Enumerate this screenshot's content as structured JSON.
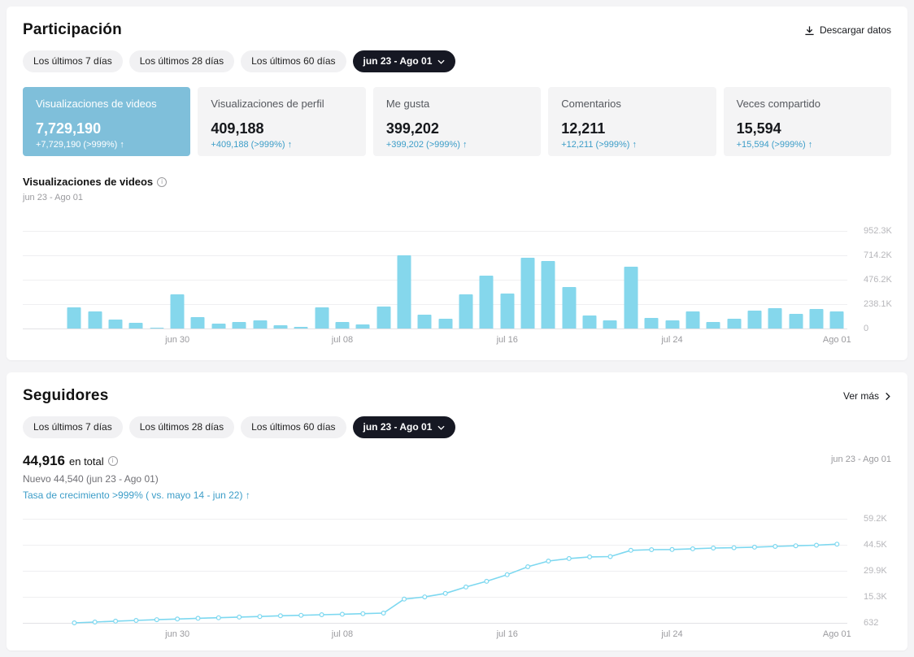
{
  "engagement": {
    "title": "Participación",
    "download_label": "Descargar datos",
    "filters": [
      "Los últimos 7 días",
      "Los últimos 28 días",
      "Los últimos 60 días"
    ],
    "date_range_label": "jun 23 - Ago 01",
    "metrics": [
      {
        "label": "Visualizaciones de videos",
        "value": "7,729,190",
        "delta": "+7,729,190 (>999%)",
        "selected": true
      },
      {
        "label": "Visualizaciones de perfil",
        "value": "409,188",
        "delta": "+409,188 (>999%)",
        "selected": false
      },
      {
        "label": "Me gusta",
        "value": "399,202",
        "delta": "+399,202 (>999%)",
        "selected": false
      },
      {
        "label": "Comentarios",
        "value": "12,211",
        "delta": "+12,211 (>999%)",
        "selected": false
      },
      {
        "label": "Veces compartido",
        "value": "15,594",
        "delta": "+15,594 (>999%)",
        "selected": false
      }
    ],
    "chart_title": "Visualizaciones de videos",
    "chart_subtitle": "jun 23 - Ago 01"
  },
  "followers": {
    "title": "Seguidores",
    "see_more_label": "Ver más",
    "filters": [
      "Los últimos 7 días",
      "Los últimos 28 días",
      "Los últimos 60 días"
    ],
    "date_range_label": "jun 23 - Ago 01",
    "total_value": "44,916",
    "total_suffix": "en total",
    "new_label": "Nuevo 44,540 (jun 23 - Ago 01)",
    "growth_label": "Tasa de crecimiento >999% ( vs. mayo 14 - jun 22)",
    "range_caption": "jun 23 - Ago 01"
  },
  "symbols": {
    "up_arrow": "↑"
  },
  "colors": {
    "accent_blue": "#3c9dc8",
    "selected_card": "#7fbfda",
    "bar_fill": "#85d7ec",
    "line_stroke": "#7dd8f0",
    "active_pill": "#161823"
  },
  "chart_data": [
    {
      "type": "bar",
      "title": "Visualizaciones de videos",
      "date_range": "jun 23 - Ago 01",
      "x": [
        "jun 23",
        "jun 24",
        "jun 25",
        "jun 26",
        "jun 27",
        "jun 28",
        "jun 29",
        "jun 30",
        "jul 01",
        "jul 02",
        "jul 03",
        "jul 04",
        "jul 05",
        "jul 06",
        "jul 07",
        "jul 08",
        "jul 09",
        "jul 10",
        "jul 11",
        "jul 12",
        "jul 13",
        "jul 14",
        "jul 15",
        "jul 16",
        "jul 17",
        "jul 18",
        "jul 19",
        "jul 20",
        "jul 21",
        "jul 22",
        "jul 23",
        "jul 24",
        "jul 25",
        "jul 26",
        "jul 27",
        "jul 28",
        "jul 29",
        "jul 30",
        "jul 31",
        "Ago 01"
      ],
      "values": [
        0,
        0,
        210000,
        170000,
        90000,
        57000,
        12000,
        330000,
        113000,
        48000,
        65000,
        81000,
        32000,
        16000,
        205000,
        65000,
        40000,
        218000,
        716000,
        135000,
        97000,
        330000,
        517000,
        339000,
        690000,
        660000,
        404000,
        129000,
        81000,
        600000,
        105000,
        81000,
        170000,
        65000,
        97000,
        178000,
        202000,
        145000,
        194000,
        170000
      ],
      "y_ticks": {
        "labels": [
          "952.3K",
          "714.2K",
          "476.2K",
          "238.1K",
          "0"
        ],
        "values": [
          952300,
          714200,
          476200,
          238100,
          0
        ]
      },
      "x_tick_indices": [
        7,
        15,
        23,
        31,
        39
      ],
      "x_tick_labels": [
        "jun 30",
        "jul 08",
        "jul 16",
        "jul 24",
        "Ago 01"
      ],
      "ylim": [
        0,
        952300
      ],
      "grid": true,
      "legend": false
    },
    {
      "type": "line",
      "title": "Seguidores en total",
      "date_range": "jun 23 - Ago 01",
      "x": [
        "jun 23",
        "jun 24",
        "jun 25",
        "jun 26",
        "jun 27",
        "jun 28",
        "jun 29",
        "jun 30",
        "jul 01",
        "jul 02",
        "jul 03",
        "jul 04",
        "jul 05",
        "jul 06",
        "jul 07",
        "jul 08",
        "jul 09",
        "jul 10",
        "jul 11",
        "jul 12",
        "jul 13",
        "jul 14",
        "jul 15",
        "jul 16",
        "jul 17",
        "jul 18",
        "jul 19",
        "jul 20",
        "jul 21",
        "jul 22",
        "jul 23",
        "jul 24",
        "jul 25",
        "jul 26",
        "jul 27",
        "jul 28",
        "jul 29",
        "jul 30",
        "jul 31",
        "Ago 01"
      ],
      "values": [
        null,
        null,
        632,
        1100,
        1600,
        2000,
        2400,
        2800,
        3200,
        3500,
        3900,
        4200,
        4600,
        4900,
        5200,
        5500,
        5800,
        6100,
        14000,
        15200,
        17200,
        20800,
        24000,
        27700,
        32200,
        35400,
        36800,
        37700,
        37900,
        41400,
        41800,
        41900,
        42300,
        42700,
        42900,
        43200,
        43600,
        44000,
        44300,
        44916
      ],
      "y_ticks": {
        "labels": [
          "59.2K",
          "44.5K",
          "29.9K",
          "15.3K",
          "632"
        ],
        "values": [
          59164,
          44531,
          29898,
          15265,
          632
        ]
      },
      "x_tick_indices": [
        7,
        15,
        23,
        31,
        39
      ],
      "x_tick_labels": [
        "jun 30",
        "jul 08",
        "jul 16",
        "jul 24",
        "Ago 01"
      ],
      "ylim": [
        632,
        59164
      ],
      "grid": true,
      "legend": false
    }
  ]
}
